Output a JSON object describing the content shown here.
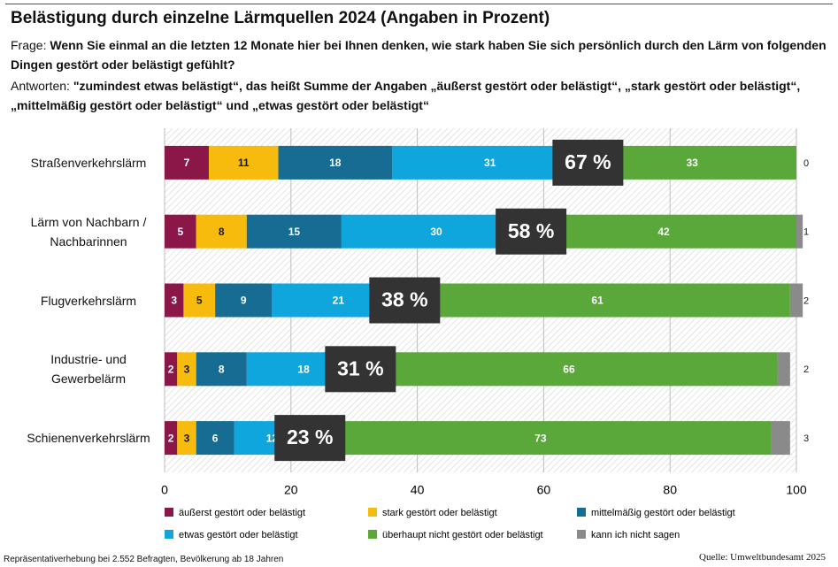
{
  "chart_data": {
    "type": "stacked-bar",
    "title": "Belästigung durch einzelne Lärmquellen 2024 (Angaben in Prozent)",
    "question_label": "Frage:",
    "question": "Wenn Sie einmal an die letzten 12 Monate hier bei Ihnen denken, wie stark haben Sie sich persönlich durch den Lärm von folgenden Dingen gestört oder belästigt gefühlt?",
    "answers_label": "Antworten:",
    "answers": "\"zumindest etwas belästigt“, das heißt Summe der Angaben „äußerst gestört oder belästigt“, „stark gestört oder belästigt“, „mittelmäßig gestört oder belästigt“ und „etwas gestört oder belästigt“",
    "categories": [
      "Straßenverkehrslärm",
      "Lärm von Nachbarn / Nachbarinnen",
      "Flugverkehrslärm",
      "Industrie- und Gewerbelärm",
      "Schienenverkehrslärm"
    ],
    "series": [
      {
        "name": "äußerst gestört oder belästigt",
        "color": "#8a1747",
        "label_color": "#ffffff",
        "values": [
          7,
          5,
          3,
          2,
          2
        ]
      },
      {
        "name": "stark gestört oder belästigt",
        "color": "#f6bb0c",
        "label_color": "#1a1a1a",
        "values": [
          11,
          8,
          5,
          3,
          3
        ]
      },
      {
        "name": "mittelmäßig gestört oder belästigt",
        "color": "#166c93",
        "label_color": "#ffffff",
        "values": [
          18,
          15,
          9,
          8,
          6
        ]
      },
      {
        "name": "etwas gestört oder belästigt",
        "color": "#0fa6dd",
        "label_color": "#ffffff",
        "values": [
          31,
          30,
          21,
          18,
          12
        ]
      },
      {
        "name": "überhaupt nicht gestört oder belästigt",
        "color": "#5aa83a",
        "label_color": "#ffffff",
        "values": [
          33,
          42,
          61,
          66,
          73
        ]
      },
      {
        "name": "kann ich nicht sagen",
        "color": "#8a8a8a",
        "label_color": "#1a1a1a",
        "label_outside": true,
        "values": [
          0,
          1,
          2,
          2,
          3
        ]
      }
    ],
    "totals": {
      "values": [
        67,
        58,
        38,
        31,
        23
      ],
      "value_labels": [
        "67 %",
        "58 %",
        "38 %",
        "31 %",
        "23 %"
      ],
      "color": "#333333"
    },
    "xlim": [
      0,
      100
    ],
    "xticks": [
      0,
      20,
      40,
      60,
      80,
      100
    ],
    "grid": true,
    "footnote": "Repräsentativerhebung bei 2.552 Befragten, Bevölkerung ab 18 Jahren",
    "source": "Quelle: Umweltbundesamt 2025"
  }
}
